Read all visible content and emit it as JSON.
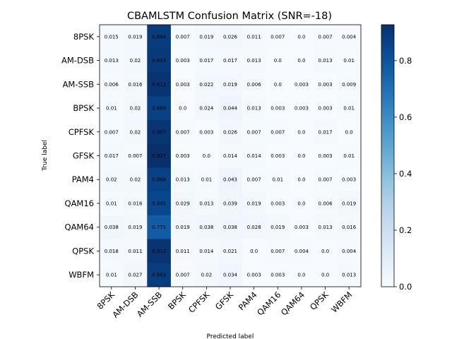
{
  "chart_data": {
    "type": "heatmap",
    "title": "CBAMLSTM Confusion Matrix (SNR=-18)",
    "xlabel": "Predicted label",
    "ylabel": "True label",
    "x_categories": [
      "8PSK",
      "AM-DSB",
      "AM-SSB",
      "BPSK",
      "CPFSK",
      "GFSK",
      "PAM4",
      "QAM16",
      "QAM64",
      "QPSK",
      "WBFM"
    ],
    "y_categories": [
      "8PSK",
      "AM-DSB",
      "AM-SSB",
      "BPSK",
      "CPFSK",
      "GFSK",
      "PAM4",
      "QAM16",
      "QAM64",
      "QPSK",
      "WBFM"
    ],
    "values": [
      [
        "0.015",
        "0.019",
        "0.884",
        "0.007",
        "0.019",
        "0.026",
        "0.011",
        "0.007",
        "0.0",
        "0.007",
        "0.004"
      ],
      [
        "0.013",
        "0.02",
        "0.893",
        "0.003",
        "0.017",
        "0.017",
        "0.013",
        "0.0",
        "0.0",
        "0.013",
        "0.01"
      ],
      [
        "0.006",
        "0.016",
        "0.912",
        "0.003",
        "0.022",
        "0.019",
        "0.006",
        "0.0",
        "0.003",
        "0.003",
        "0.009"
      ],
      [
        "0.01",
        "0.02",
        "0.869",
        "0.0",
        "0.024",
        "0.044",
        "0.013",
        "0.003",
        "0.003",
        "0.003",
        "0.01"
      ],
      [
        "0.007",
        "0.02",
        "0.907",
        "0.007",
        "0.003",
        "0.026",
        "0.007",
        "0.007",
        "0.0",
        "0.017",
        "0.0"
      ],
      [
        "0.017",
        "0.007",
        "0.927",
        "0.003",
        "0.0",
        "0.014",
        "0.014",
        "0.003",
        "0.0",
        "0.003",
        "0.01"
      ],
      [
        "0.02",
        "0.02",
        "0.868",
        "0.013",
        "0.01",
        "0.043",
        "0.007",
        "0.01",
        "0.0",
        "0.007",
        "0.003"
      ],
      [
        "0.01",
        "0.016",
        "0.845",
        "0.029",
        "0.013",
        "0.039",
        "0.019",
        "0.003",
        "0.0",
        "0.006",
        "0.019"
      ],
      [
        "0.038",
        "0.019",
        "0.771",
        "0.019",
        "0.038",
        "0.038",
        "0.028",
        "0.019",
        "0.003",
        "0.013",
        "0.016"
      ],
      [
        "0.018",
        "0.011",
        "0.912",
        "0.011",
        "0.014",
        "0.021",
        "0.0",
        "0.007",
        "0.004",
        "0.0",
        "0.004"
      ],
      [
        "0.01",
        "0.027",
        "0.883",
        "0.007",
        "0.02",
        "0.034",
        "0.003",
        "0.003",
        "0.0",
        "0.0",
        "0.013"
      ]
    ],
    "colormap": "Blues",
    "vmin": 0.0,
    "vmax": 0.927,
    "colorbar_ticks": [
      "0.0",
      "0.2",
      "0.4",
      "0.6",
      "0.8"
    ],
    "grid": false
  }
}
